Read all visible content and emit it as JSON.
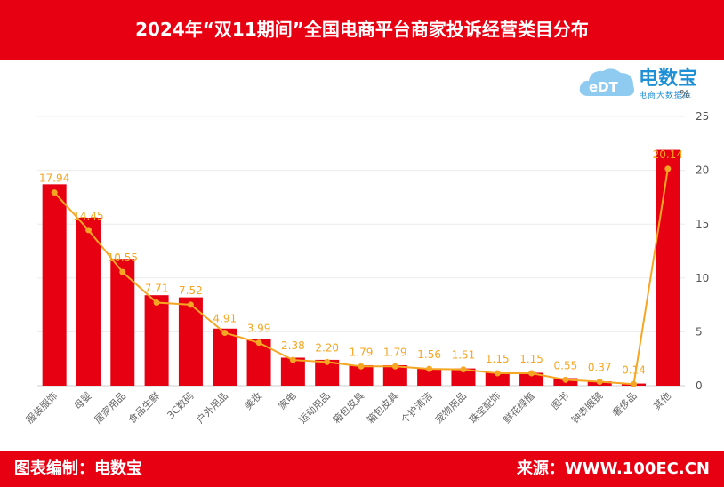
{
  "header": {
    "title": "2024年“双11期间”全国电商平台商家投诉经营类目分布"
  },
  "footer": {
    "left": "图表编制：电数宝",
    "right": "来源：WWW.100EC.CN"
  },
  "logo": {
    "name": "电数宝",
    "subtitle": "电商大数据库",
    "mark": "eDT"
  },
  "colors": {
    "brand": "#e60012",
    "bar": "#e60012",
    "line": "#f5a623",
    "logo": "#1f8fd6"
  },
  "chart_data": {
    "type": "bar",
    "title": "2024年“双11期间”全国电商平台商家投诉经营类目分布",
    "unit": "%",
    "ylim": [
      0,
      25
    ],
    "yticks": [
      0,
      5,
      10,
      15,
      20,
      25
    ],
    "grid": true,
    "categories": [
      "服装服饰",
      "母婴",
      "居家用品",
      "食品生鲜",
      "3C数码",
      "户外用品",
      "美妆",
      "家电",
      "运动用品",
      "箱包皮具",
      "箱包皮具",
      "个护清洁",
      "宠物用品",
      "珠宝配饰",
      "鲜花绿植",
      "图书",
      "钟表眼镜",
      "奢侈品",
      "其他"
    ],
    "series": [
      {
        "type": "bar",
        "values": [
          17.94,
          14.45,
          10.55,
          7.71,
          7.52,
          4.91,
          3.99,
          2.38,
          2.2,
          1.79,
          1.79,
          1.56,
          1.51,
          1.15,
          1.15,
          0.55,
          0.37,
          0.14,
          20.14
        ]
      },
      {
        "type": "line",
        "values": [
          17.94,
          14.45,
          10.55,
          7.71,
          7.52,
          4.91,
          3.99,
          2.38,
          2.2,
          1.79,
          1.79,
          1.56,
          1.51,
          1.15,
          1.15,
          0.55,
          0.37,
          0.14,
          20.14
        ]
      }
    ],
    "data_labels": [
      "17.94",
      "14.45",
      "10.55",
      "7.71",
      "7.52",
      "4.91",
      "3.99",
      "2.38",
      "2.20",
      "1.79",
      "1.79",
      "1.56",
      "1.51",
      "1.15",
      "1.15",
      "0.55",
      "0.37",
      "0.14",
      "20.14"
    ],
    "bar_heights": [
      18.7,
      15.6,
      11.7,
      8.4,
      8.2,
      5.3,
      4.3,
      2.6,
      2.4,
      1.9,
      1.9,
      1.6,
      1.6,
      1.2,
      1.2,
      0.7,
      0.4,
      0.2,
      21.9
    ]
  }
}
